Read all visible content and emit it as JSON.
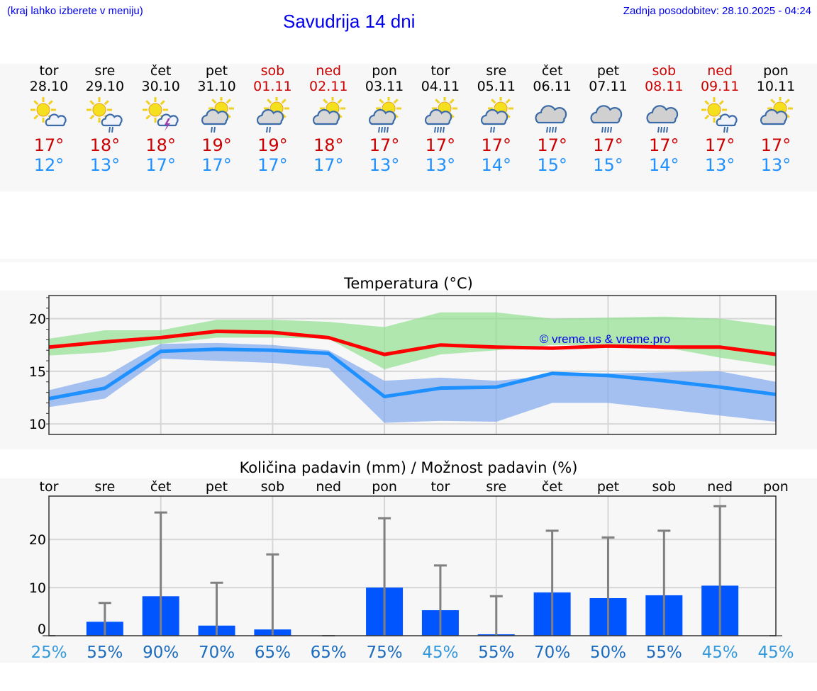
{
  "header": {
    "hint": "(kraj lahko izberete v meniju)",
    "title": "Savudrija 14 dni",
    "updated": "Zadnja posodobitev: 28.10.2025 - 04:24"
  },
  "colors": {
    "link": "#0000ee",
    "max": "#cc0000",
    "min": "#1e90ff",
    "bar": "#0055ff",
    "weekend": "#cc0000"
  },
  "days": [
    {
      "name": "tor",
      "date": "28.10",
      "weekend": false,
      "icon": "sun-cloud",
      "max": "17°",
      "min": "12°"
    },
    {
      "name": "sre",
      "date": "29.10",
      "weekend": false,
      "icon": "sun-cloud-light-rain",
      "max": "18°",
      "min": "13°"
    },
    {
      "name": "čet",
      "date": "30.10",
      "weekend": false,
      "icon": "sun-cloud-thunder",
      "max": "18°",
      "min": "17°"
    },
    {
      "name": "pet",
      "date": "31.10",
      "weekend": false,
      "icon": "cloud-sun-light-rain",
      "max": "19°",
      "min": "17°"
    },
    {
      "name": "sob",
      "date": "01.11",
      "weekend": true,
      "icon": "cloud-sun-light-rain",
      "max": "19°",
      "min": "17°"
    },
    {
      "name": "ned",
      "date": "02.11",
      "weekend": true,
      "icon": "cloud-sun",
      "max": "18°",
      "min": "17°"
    },
    {
      "name": "pon",
      "date": "03.11",
      "weekend": false,
      "icon": "cloud-sun-rain",
      "max": "17°",
      "min": "13°"
    },
    {
      "name": "tor",
      "date": "04.11",
      "weekend": false,
      "icon": "cloud-sun-rain",
      "max": "17°",
      "min": "13°"
    },
    {
      "name": "sre",
      "date": "05.11",
      "weekend": false,
      "icon": "cloud-sun-light-rain",
      "max": "17°",
      "min": "14°"
    },
    {
      "name": "čet",
      "date": "06.11",
      "weekend": false,
      "icon": "cloud-rain",
      "max": "17°",
      "min": "15°"
    },
    {
      "name": "pet",
      "date": "07.11",
      "weekend": false,
      "icon": "cloud-rain",
      "max": "17°",
      "min": "15°"
    },
    {
      "name": "sob",
      "date": "08.11",
      "weekend": true,
      "icon": "cloud-rain",
      "max": "17°",
      "min": "14°"
    },
    {
      "name": "ned",
      "date": "09.11",
      "weekend": true,
      "icon": "sun-cloud-light-rain",
      "max": "17°",
      "min": "13°"
    },
    {
      "name": "pon",
      "date": "10.11",
      "weekend": false,
      "icon": "cloud-sun",
      "max": "17°",
      "min": "13°"
    }
  ],
  "chart_data": [
    {
      "type": "line",
      "title": "Temperatura (°C)",
      "watermark": "© vreme.us & vreme.pro",
      "ylim": [
        9,
        22.2
      ],
      "yticks": [
        "10",
        "15",
        "20"
      ],
      "ytick_values": [
        10,
        15,
        20
      ],
      "grid": true,
      "series": [
        {
          "name": "max",
          "color": "#ff0000",
          "values": [
            17.3,
            17.8,
            18.2,
            18.8,
            18.7,
            18.2,
            16.6,
            17.5,
            17.3,
            17.2,
            17.4,
            17.3,
            17.3,
            16.6
          ]
        },
        {
          "name": "min",
          "color": "#1e90ff",
          "values": [
            12.4,
            13.4,
            16.9,
            17.1,
            17.0,
            16.7,
            12.6,
            13.4,
            13.5,
            14.8,
            14.6,
            14.1,
            13.5,
            12.8
          ]
        }
      ],
      "bands": [
        {
          "name": "max-range",
          "color": "#90e090",
          "upper": [
            18.1,
            18.9,
            18.9,
            19.9,
            19.9,
            19.7,
            19.2,
            20.6,
            20.6,
            20.0,
            20.1,
            20.2,
            20.0,
            19.3
          ],
          "lower": [
            16.5,
            16.8,
            17.6,
            18.2,
            18.2,
            18.1,
            15.2,
            16.6,
            17.0,
            17.5,
            17.5,
            17.3,
            16.3,
            15.5
          ]
        },
        {
          "name": "min-range",
          "color": "#7fa8ee",
          "upper": [
            13.2,
            14.5,
            17.6,
            17.7,
            17.5,
            17.0,
            14.1,
            14.4,
            14.1,
            14.6,
            14.8,
            14.9,
            15.0,
            14.0
          ],
          "lower": [
            11.6,
            12.4,
            16.2,
            16.0,
            15.8,
            15.3,
            10.1,
            10.3,
            10.2,
            12.0,
            12.0,
            11.4,
            10.8,
            10.2
          ]
        }
      ]
    },
    {
      "type": "bar",
      "title": "Količina padavin (mm) / Možnost padavin (%)",
      "categories": [
        "tor",
        "sre",
        "čet",
        "pet",
        "sob",
        "ned",
        "pon",
        "tor",
        "sre",
        "čet",
        "pet",
        "sob",
        "ned",
        "pon"
      ],
      "ylim": [
        0,
        29
      ],
      "yticks": [
        "0",
        "10",
        "20"
      ],
      "ytick_values": [
        0,
        10,
        20
      ],
      "values": [
        0,
        2.9,
        8.2,
        2.1,
        1.3,
        0,
        10.0,
        5.3,
        0.3,
        9.0,
        7.8,
        8.4,
        10.4,
        0
      ],
      "error_max": [
        0,
        6.8,
        25.6,
        11.0,
        16.9,
        0,
        24.4,
        14.6,
        8.2,
        21.8,
        20.4,
        21.8,
        26.9,
        0
      ],
      "probability": [
        "25%",
        "55%",
        "90%",
        "70%",
        "65%",
        "65%",
        "75%",
        "45%",
        "55%",
        "70%",
        "50%",
        "55%",
        "45%",
        "45%"
      ],
      "probability_values": [
        25,
        55,
        90,
        70,
        65,
        65,
        75,
        45,
        55,
        70,
        50,
        55,
        45,
        45
      ]
    }
  ]
}
